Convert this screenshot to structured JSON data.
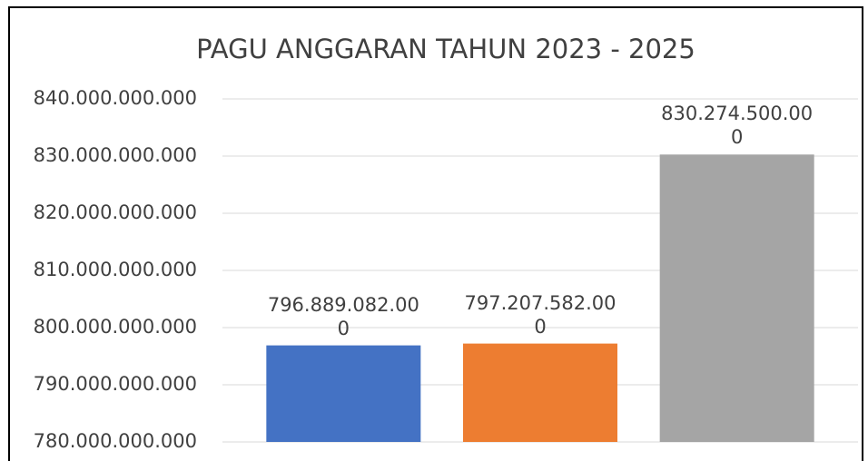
{
  "chart_data": {
    "type": "bar",
    "title": "PAGU ANGGARAN TAHUN 2023 - 2025",
    "categories": [
      null,
      null,
      null
    ],
    "values": [
      796889082000,
      797207582000,
      830274500000
    ],
    "value_labels": [
      "796.889.082.000",
      "797.207.582.000",
      "830.274.500.000"
    ],
    "colors": [
      "#4472c4",
      "#ed7d31",
      "#a5a5a5"
    ],
    "ylim": [
      780000000000,
      840000000000
    ],
    "yticks": [
      {
        "value": 780000000000,
        "label": "780.000.000.000"
      },
      {
        "value": 790000000000,
        "label": "790.000.000.000"
      },
      {
        "value": 800000000000,
        "label": "800.000.000.000"
      },
      {
        "value": 810000000000,
        "label": "810.000.000.000"
      },
      {
        "value": 820000000000,
        "label": "820.000.000.000"
      },
      {
        "value": 830000000000,
        "label": "830.000.000.000"
      },
      {
        "value": 840000000000,
        "label": "840.000.000.000"
      }
    ],
    "grid": true
  }
}
